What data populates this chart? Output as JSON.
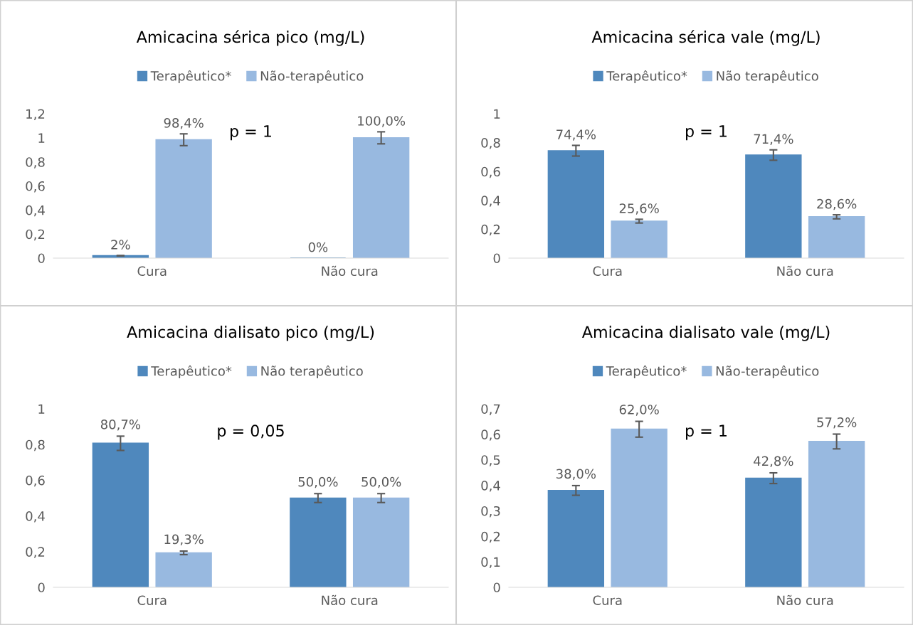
{
  "chart_data": [
    {
      "type": "bar",
      "title": "Amicacina sérica pico (mg/L)",
      "categories": [
        "Cura",
        "Não cura"
      ],
      "series": [
        {
          "name": "Terapêutico*",
          "color": "#4f88bd",
          "values": [
            0.02,
            0
          ],
          "errors": [
            0.001,
            null
          ],
          "value_labels": [
            "2%",
            "0%"
          ]
        },
        {
          "name": "Não-terapêutico",
          "color": "#98b9e0",
          "values": [
            0.984,
            1.0
          ],
          "errors": [
            0.049,
            0.05
          ],
          "value_labels": [
            "98,4%",
            "100,0%"
          ]
        }
      ],
      "ylim": [
        0,
        1.2
      ],
      "yticks": [
        0,
        {
          "value": 0.2,
          "label": "0,2"
        },
        {
          "value": 0.4,
          "label": "0,4"
        },
        {
          "value": 0.6,
          "label": "0,6"
        },
        {
          "value": 0.8,
          "label": "0,8"
        },
        1,
        {
          "value": 1.2,
          "label": "1,2"
        }
      ],
      "annotations": [
        "p = 1"
      ],
      "legend": "top",
      "grid": false
    },
    {
      "type": "bar",
      "title": "Amicacina sérica vale (mg/L)",
      "categories": [
        "Cura",
        "Não cura"
      ],
      "series": [
        {
          "name": "Terapêutico*",
          "color": "#4f88bd",
          "values": [
            0.744,
            0.714
          ],
          "errors": [
            0.037,
            0.036
          ],
          "value_labels": [
            "74,4%",
            "71,4%"
          ]
        },
        {
          "name": "Não terapêutico",
          "color": "#98b9e0",
          "values": [
            0.256,
            0.286
          ],
          "errors": [
            0.013,
            0.014
          ],
          "value_labels": [
            "25,6%",
            "28,6%"
          ]
        }
      ],
      "ylim": [
        0,
        1
      ],
      "yticks": [
        0,
        {
          "value": 0.2,
          "label": "0,2"
        },
        {
          "value": 0.4,
          "label": "0,4"
        },
        {
          "value": 0.6,
          "label": "0,6"
        },
        {
          "value": 0.8,
          "label": "0,8"
        },
        1
      ],
      "annotations": [
        "p = 1"
      ],
      "legend": "top",
      "grid": false
    },
    {
      "type": "bar",
      "title": "Amicacina dialisato pico (mg/L)",
      "categories": [
        "Cura",
        "Não cura"
      ],
      "series": [
        {
          "name": "Terapêutico*",
          "color": "#4f88bd",
          "values": [
            0.807,
            0.5
          ],
          "errors": [
            0.04,
            0.025
          ],
          "value_labels": [
            "80,7%",
            "50,0%"
          ]
        },
        {
          "name": "Não terapêutico",
          "color": "#98b9e0",
          "values": [
            0.193,
            0.5
          ],
          "errors": [
            0.01,
            0.025
          ],
          "value_labels": [
            "19,3%",
            "50,0%"
          ]
        }
      ],
      "ylim": [
        0,
        1
      ],
      "yticks": [
        0,
        {
          "value": 0.2,
          "label": "0,2"
        },
        {
          "value": 0.4,
          "label": "0,4"
        },
        {
          "value": 0.6,
          "label": "0,6"
        },
        {
          "value": 0.8,
          "label": "0,8"
        },
        1
      ],
      "annotations": [
        "p = 0,05"
      ],
      "legend": "top",
      "grid": false
    },
    {
      "type": "bar",
      "title": "Amicacina dialisato vale (mg/L)",
      "categories": [
        "Cura",
        "Não cura"
      ],
      "series": [
        {
          "name": "Terapêutico*",
          "color": "#4f88bd",
          "values": [
            0.38,
            0.428
          ],
          "errors": [
            0.019,
            0.021
          ],
          "value_labels": [
            "38,0%",
            "42,8%"
          ]
        },
        {
          "name": "Não-terapêutico",
          "color": "#98b9e0",
          "values": [
            0.62,
            0.572
          ],
          "errors": [
            0.031,
            0.029
          ],
          "value_labels": [
            "62,0%",
            "57,2%"
          ]
        }
      ],
      "ylim": [
        0,
        0.7
      ],
      "yticks": [
        0,
        {
          "value": 0.1,
          "label": "0,1"
        },
        {
          "value": 0.2,
          "label": "0,2"
        },
        {
          "value": 0.3,
          "label": "0,3"
        },
        {
          "value": 0.4,
          "label": "0,4"
        },
        {
          "value": 0.5,
          "label": "0,5"
        },
        {
          "value": 0.6,
          "label": "0,6"
        },
        {
          "value": 0.7,
          "label": "0,7"
        }
      ],
      "annotations": [
        "p = 1"
      ],
      "legend": "top",
      "grid": false
    }
  ]
}
